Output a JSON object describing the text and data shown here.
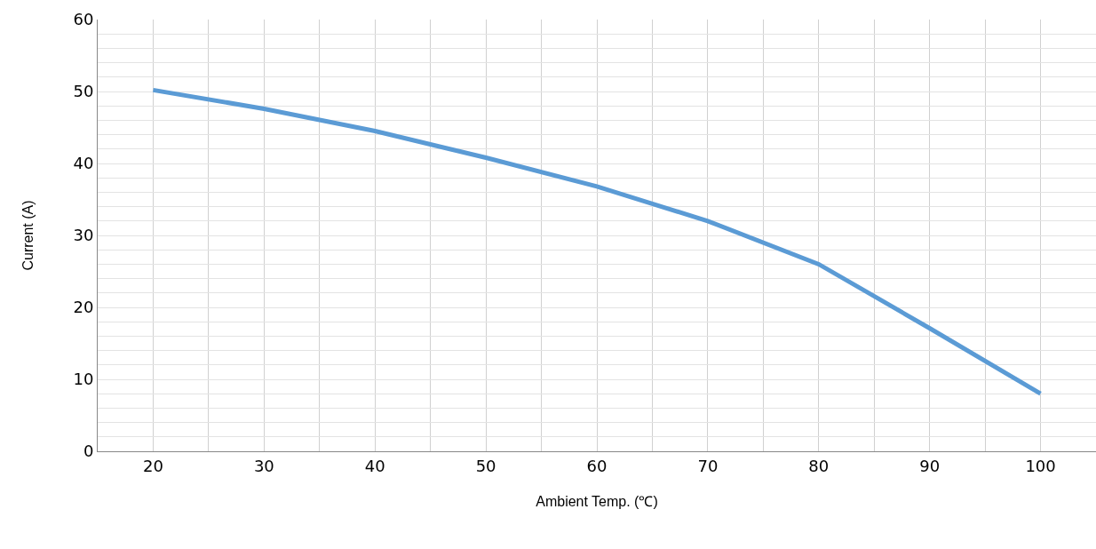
{
  "chart_data": {
    "type": "line",
    "xlabel": "Ambient Temp. (℃)",
    "ylabel": "Current (A)",
    "x": [
      20,
      30,
      40,
      50,
      60,
      70,
      80,
      90,
      100
    ],
    "series": [
      {
        "color": "#5b9bd5",
        "values": [
          50.2,
          47.6,
          44.5,
          40.8,
          36.8,
          32.0,
          26.0,
          17.1,
          8.0
        ]
      }
    ],
    "xlim": [
      15,
      105
    ],
    "xticks": [
      20,
      {
        "value": 25,
        "label": null
      },
      30,
      {
        "value": 35,
        "label": null
      },
      40,
      {
        "value": 45,
        "label": null
      },
      50,
      {
        "value": 55,
        "label": null
      },
      60,
      {
        "value": 65,
        "label": null
      },
      70,
      {
        "value": 75,
        "label": null
      },
      80,
      {
        "value": 85,
        "label": null
      },
      90,
      {
        "value": 95,
        "label": null
      },
      100
    ],
    "ylim": [
      0,
      60
    ],
    "yticks": [
      0,
      {
        "value": 2,
        "label": null
      },
      {
        "value": 4,
        "label": null
      },
      {
        "value": 6,
        "label": null
      },
      {
        "value": 8,
        "label": null
      },
      10,
      {
        "value": 12,
        "label": null
      },
      {
        "value": 14,
        "label": null
      },
      {
        "value": 16,
        "label": null
      },
      {
        "value": 18,
        "label": null
      },
      20,
      {
        "value": 22,
        "label": null
      },
      {
        "value": 24,
        "label": null
      },
      {
        "value": 26,
        "label": null
      },
      {
        "value": 28,
        "label": null
      },
      30,
      {
        "value": 32,
        "label": null
      },
      {
        "value": 34,
        "label": null
      },
      {
        "value": 36,
        "label": null
      },
      {
        "value": 38,
        "label": null
      },
      40,
      {
        "value": 42,
        "label": null
      },
      {
        "value": 44,
        "label": null
      },
      {
        "value": 46,
        "label": null
      },
      {
        "value": 48,
        "label": null
      },
      50,
      {
        "value": 52,
        "label": null
      },
      {
        "value": 54,
        "label": null
      },
      {
        "value": 56,
        "label": null
      },
      {
        "value": 58,
        "label": null
      },
      60
    ],
    "grid": true,
    "legend": false,
    "marker": "none",
    "line_style": "solid"
  }
}
